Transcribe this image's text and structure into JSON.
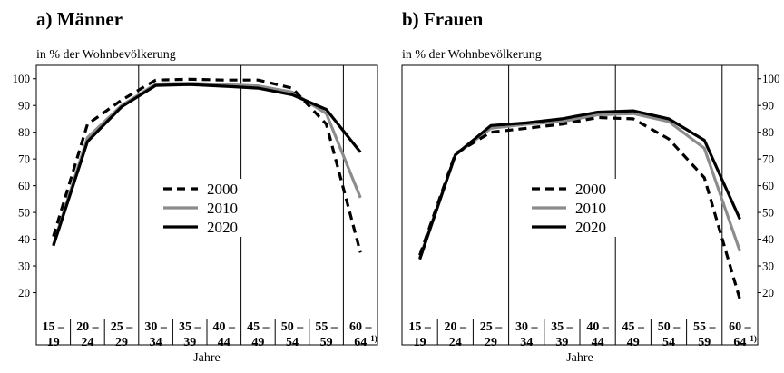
{
  "chart_data": [
    {
      "type": "line",
      "title": "a) Männer",
      "ylabel": "in % der Wohnbevölkerung",
      "xlabel": "Jahre",
      "categories": [
        [
          "15 –",
          "19"
        ],
        [
          "20 –",
          "24"
        ],
        [
          "25 –",
          "29"
        ],
        [
          "30 –",
          "34"
        ],
        [
          "35 –",
          "39"
        ],
        [
          "40 –",
          "44"
        ],
        [
          "45 –",
          "49"
        ],
        [
          "50 –",
          "54"
        ],
        [
          "55 –",
          "59"
        ],
        [
          "60 –",
          "64"
        ]
      ],
      "last_category_note": "1)",
      "ylim": [
        10,
        105
      ],
      "yticks": [
        20,
        30,
        40,
        50,
        60,
        70,
        80,
        90,
        100
      ],
      "ytick_side": "left",
      "grid": "vertical",
      "legend_position": "center",
      "series": [
        {
          "name": "2000",
          "values": [
            41,
            83,
            92,
            99.5,
            99.8,
            99.5,
            99.5,
            96.5,
            83,
            35
          ],
          "style": "dashed",
          "color": "#000000"
        },
        {
          "name": "2010",
          "values": [
            38,
            78,
            90,
            98,
            98.3,
            97.8,
            97.3,
            95,
            87,
            55.5
          ],
          "style": "solid",
          "color": "#8c8c8c"
        },
        {
          "name": "2020",
          "values": [
            37.5,
            76.5,
            89.5,
            97.5,
            97.8,
            97.2,
            96.5,
            94,
            88.5,
            72.5
          ],
          "style": "solid",
          "color": "#000000"
        }
      ]
    },
    {
      "type": "line",
      "title": "b) Frauen",
      "ylabel": "in % der Wohnbevölkerung",
      "xlabel": "Jahre",
      "categories": [
        [
          "15 –",
          "19"
        ],
        [
          "20 –",
          "24"
        ],
        [
          "25 –",
          "29"
        ],
        [
          "30 –",
          "34"
        ],
        [
          "35 –",
          "39"
        ],
        [
          "40 –",
          "44"
        ],
        [
          "45 –",
          "49"
        ],
        [
          "50 –",
          "54"
        ],
        [
          "55 –",
          "59"
        ],
        [
          "60 –",
          "64"
        ]
      ],
      "last_category_note": "1)",
      "ylim": [
        10,
        105
      ],
      "yticks": [
        20,
        30,
        40,
        50,
        60,
        70,
        80,
        90,
        100
      ],
      "ytick_side": "right",
      "grid": "vertical",
      "legend_position": "center",
      "series": [
        {
          "name": "2000",
          "values": [
            34,
            72,
            80,
            81.5,
            83,
            85.5,
            85,
            77.5,
            63,
            17.5
          ],
          "style": "dashed",
          "color": "#000000"
        },
        {
          "name": "2010",
          "values": [
            33,
            71.5,
            81.5,
            83,
            84,
            86.5,
            87,
            84,
            74,
            35.5
          ],
          "style": "solid",
          "color": "#8c8c8c"
        },
        {
          "name": "2020",
          "values": [
            32.5,
            71.5,
            82.5,
            83.5,
            85,
            87.5,
            88,
            85,
            77,
            47.5
          ],
          "style": "solid",
          "color": "#000000"
        }
      ]
    }
  ]
}
